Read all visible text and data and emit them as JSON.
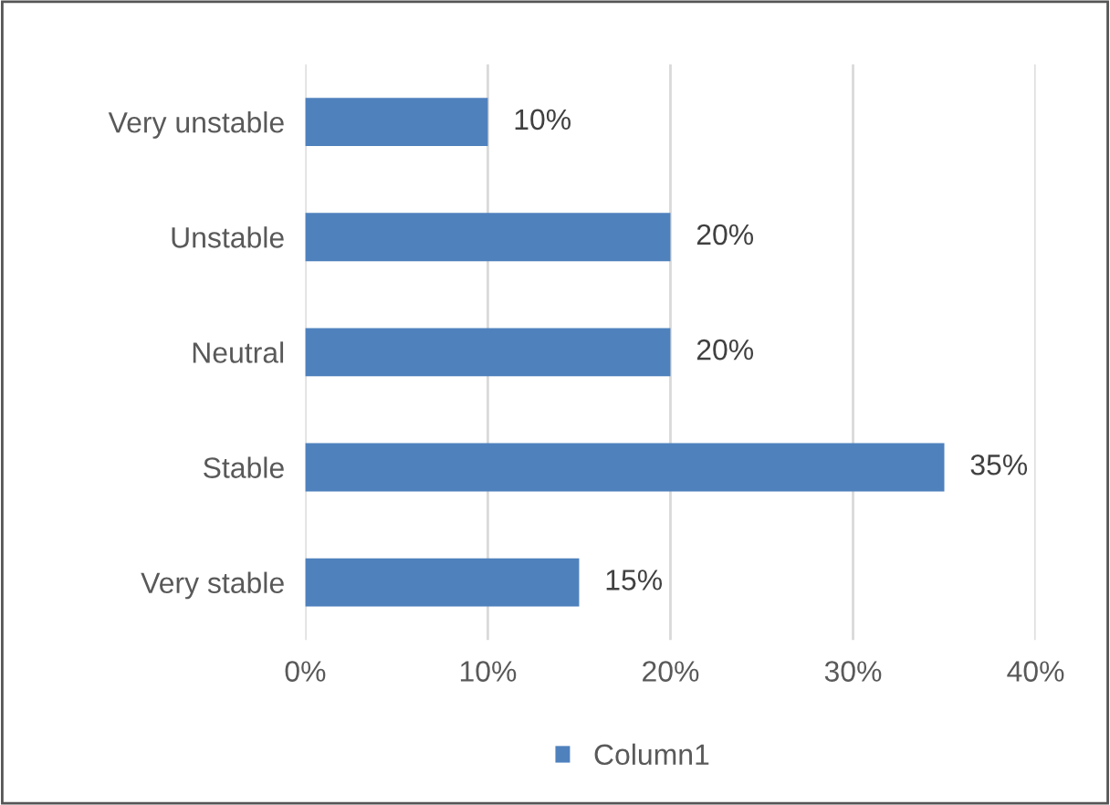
{
  "chart_data": {
    "type": "bar",
    "orientation": "horizontal",
    "categories": [
      "Very unstable",
      "Unstable",
      "Neutral",
      "Stable",
      "Very stable"
    ],
    "series": [
      {
        "name": "Column1",
        "color": "#4f81bd",
        "values": [
          10,
          20,
          20,
          35,
          15
        ],
        "value_labels": [
          "10%",
          "20%",
          "20%",
          "35%",
          "15%"
        ]
      }
    ],
    "xlim": [
      0,
      40
    ],
    "xticks": [
      {
        "value": 0,
        "label": "0%"
      },
      {
        "value": 10,
        "label": "10%"
      },
      {
        "value": 20,
        "label": "20%"
      },
      {
        "value": 30,
        "label": "30%"
      },
      {
        "value": 40,
        "label": "40%"
      }
    ],
    "grid": "x",
    "legend": "bottom"
  }
}
